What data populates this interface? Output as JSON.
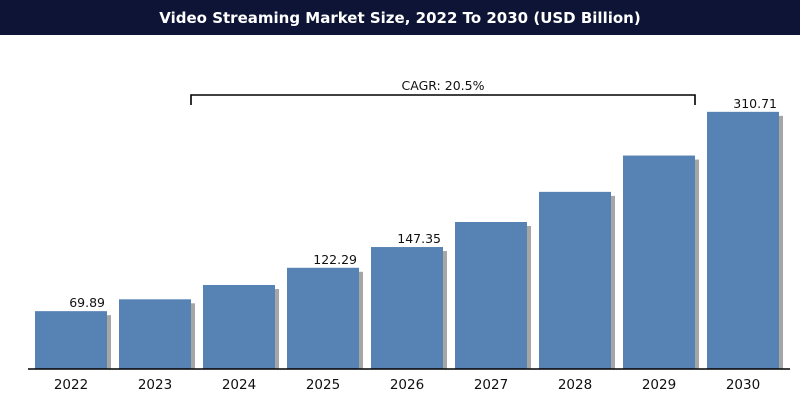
{
  "chart_data": {
    "type": "bar",
    "title": "Video Streaming Market Size, 2022 To 2030 (USD Billion)",
    "categories": [
      "2022",
      "2023",
      "2024",
      "2025",
      "2026",
      "2027",
      "2028",
      "2029",
      "2030"
    ],
    "values": [
      69.89,
      84.2,
      101.5,
      122.29,
      147.35,
      177.6,
      214.0,
      257.9,
      310.71
    ],
    "value_labels": [
      "69.89",
      "",
      "",
      "122.29",
      "147.35",
      "",
      "",
      "",
      "310.71"
    ],
    "annotation": "CAGR: 20.5%",
    "bar_color": "#5682b4",
    "ylim": [
      0,
      325
    ],
    "grid": false,
    "legend": "none"
  }
}
